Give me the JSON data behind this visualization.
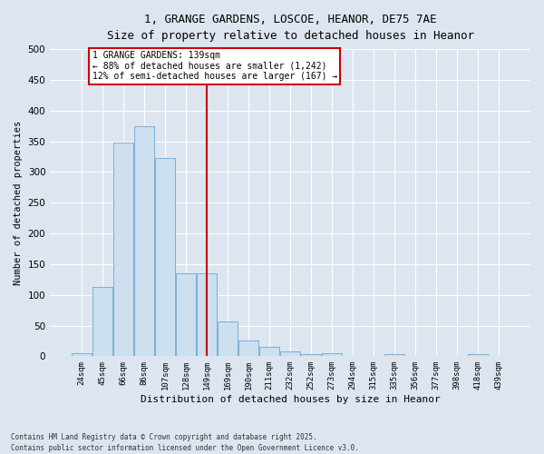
{
  "title_line1": "1, GRANGE GARDENS, LOSCOE, HEANOR, DE75 7AE",
  "title_line2": "Size of property relative to detached houses in Heanor",
  "xlabel": "Distribution of detached houses by size in Heanor",
  "ylabel": "Number of detached properties",
  "categories": [
    "24sqm",
    "45sqm",
    "66sqm",
    "86sqm",
    "107sqm",
    "128sqm",
    "149sqm",
    "169sqm",
    "190sqm",
    "211sqm",
    "232sqm",
    "252sqm",
    "273sqm",
    "294sqm",
    "315sqm",
    "335sqm",
    "356sqm",
    "377sqm",
    "398sqm",
    "418sqm",
    "439sqm"
  ],
  "values": [
    5,
    113,
    348,
    375,
    323,
    135,
    135,
    57,
    26,
    15,
    8,
    3,
    5,
    0,
    0,
    3,
    0,
    0,
    0,
    3,
    0
  ],
  "bar_color": "#cce0f0",
  "bar_edge_color": "#7bafd4",
  "background_color": "#dde6f0",
  "grid_color": "#ffffff",
  "vline_x": 6.0,
  "vline_color": "#cc0000",
  "annotation_text": "1 GRANGE GARDENS: 139sqm\n← 88% of detached houses are smaller (1,242)\n12% of semi-detached houses are larger (167) →",
  "annotation_box_facecolor": "#ffffff",
  "annotation_box_edgecolor": "#cc0000",
  "ylim": [
    0,
    500
  ],
  "yticks": [
    0,
    50,
    100,
    150,
    200,
    250,
    300,
    350,
    400,
    450,
    500
  ],
  "footer_line1": "Contains HM Land Registry data © Crown copyright and database right 2025.",
  "footer_line2": "Contains public sector information licensed under the Open Government Licence v3.0."
}
